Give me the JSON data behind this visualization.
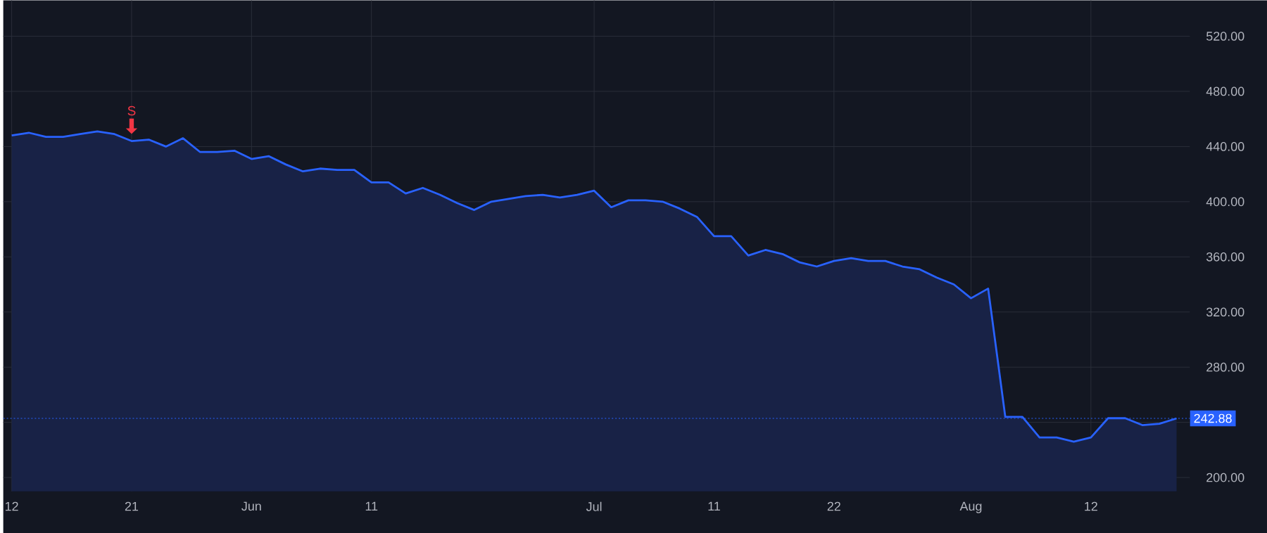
{
  "chart_data": {
    "type": "area",
    "categories": [
      "12",
      null,
      null,
      null,
      null,
      null,
      null,
      "21",
      null,
      null,
      null,
      null,
      null,
      null,
      "Jun",
      null,
      null,
      null,
      null,
      null,
      null,
      "11",
      null,
      null,
      null,
      null,
      null,
      null,
      null,
      null,
      null,
      null,
      null,
      null,
      "Jul",
      null,
      null,
      null,
      null,
      null,
      null,
      "11",
      null,
      null,
      null,
      null,
      null,
      null,
      "22",
      null,
      null,
      null,
      null,
      null,
      null,
      null,
      "Aug",
      null,
      null,
      null,
      null,
      null,
      null,
      "12",
      null,
      null,
      null,
      null,
      null
    ],
    "values": [
      448,
      450,
      447,
      447,
      449,
      451,
      449,
      444,
      445,
      440,
      446,
      436,
      436,
      437,
      431,
      433,
      427,
      422,
      424,
      423,
      423,
      414,
      414,
      406,
      410,
      405,
      399,
      394,
      400,
      402,
      404,
      405,
      403,
      405,
      408,
      396,
      401,
      401,
      400,
      395,
      389,
      375,
      375,
      361,
      365,
      362,
      356,
      353,
      357,
      359,
      357,
      357,
      353,
      351,
      345,
      340,
      330,
      337,
      244,
      244,
      229,
      229,
      226,
      229,
      243,
      243,
      238,
      239,
      242.88
    ],
    "color": "#2962ff",
    "ylim": [
      190,
      546
    ],
    "yticks": [
      {
        "value": 200,
        "label": "200.00"
      },
      {
        "value": 240,
        "label": null
      },
      {
        "value": 280,
        "label": "280.00"
      },
      {
        "value": 320,
        "label": "320.00"
      },
      {
        "value": 360,
        "label": "360.00"
      },
      {
        "value": 400,
        "label": "400.00"
      },
      {
        "value": 440,
        "label": "440.00"
      },
      {
        "value": 480,
        "label": "480.00"
      },
      {
        "value": 520,
        "label": "520.00"
      }
    ],
    "grid": true,
    "ref_lines": [
      {
        "axis": "y",
        "value": 242.88,
        "label": "242.88",
        "color": "#2962ff",
        "line_style": "dotted"
      }
    ],
    "annotations": [
      {
        "text": "S",
        "x": "21",
        "y": 444
      }
    ]
  }
}
